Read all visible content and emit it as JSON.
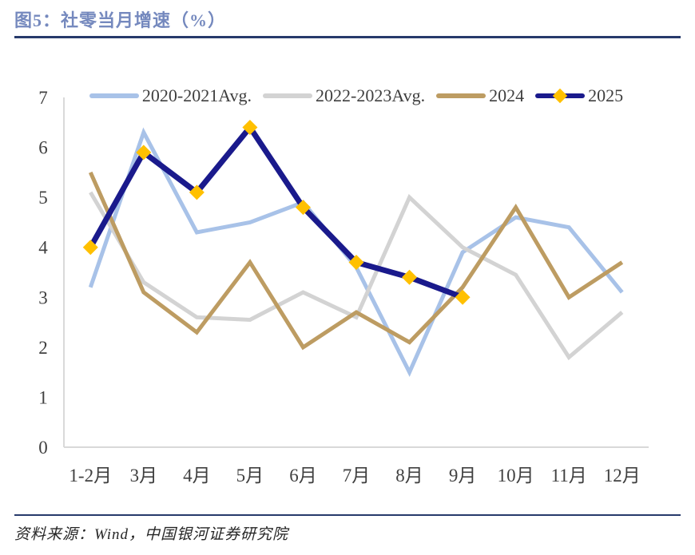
{
  "header": {
    "title": "图5：社零当月增速（%）",
    "title_color": "#7589BE",
    "rule_color": "#273A6B"
  },
  "footer": {
    "source": "资料来源：Wind，中国银河证券研究院",
    "rule_color": "#273A6B"
  },
  "colors": {
    "axis_line": "#D9D9D9",
    "tick_text": "#404040",
    "series_2020_2021": "#A8C2E8",
    "series_2022_2023": "#D3D3D3",
    "series_2024": "#BD9C62",
    "series_2025": "#1A1A8C",
    "marker_2025": "#FFC000"
  },
  "chart_data": {
    "type": "line",
    "title": "社零当月增速（%）",
    "categories": [
      "1-2月",
      "3月",
      "4月",
      "5月",
      "6月",
      "7月",
      "8月",
      "9月",
      "10月",
      "11月",
      "12月"
    ],
    "series": [
      {
        "name": "2020-2021Avg.",
        "color": "#A8C2E8",
        "marker": "none",
        "values": [
          3.2,
          6.3,
          4.3,
          4.5,
          4.9,
          3.6,
          1.5,
          3.9,
          4.6,
          4.4,
          3.1
        ]
      },
      {
        "name": "2022-2023Avg.",
        "color": "#D3D3D3",
        "marker": "none",
        "values": [
          5.1,
          3.3,
          2.6,
          2.55,
          3.1,
          2.6,
          5.0,
          4.0,
          3.45,
          1.8,
          2.7
        ]
      },
      {
        "name": "2024",
        "color": "#BD9C62",
        "marker": "none",
        "values": [
          5.5,
          3.1,
          2.3,
          3.7,
          2.0,
          2.7,
          2.1,
          3.2,
          4.8,
          3.0,
          3.7
        ]
      },
      {
        "name": "2025",
        "color": "#1A1A8C",
        "marker": "diamond",
        "marker_color": "#FFC000",
        "values": [
          4.0,
          5.9,
          5.1,
          6.4,
          4.8,
          3.7,
          3.4,
          3.0
        ]
      }
    ],
    "xlabel": "",
    "ylabel": "",
    "ylim": [
      0,
      7
    ],
    "yticks": [
      0,
      1,
      2,
      3,
      4,
      5,
      6,
      7
    ],
    "grid": false,
    "legend_position": "top"
  }
}
